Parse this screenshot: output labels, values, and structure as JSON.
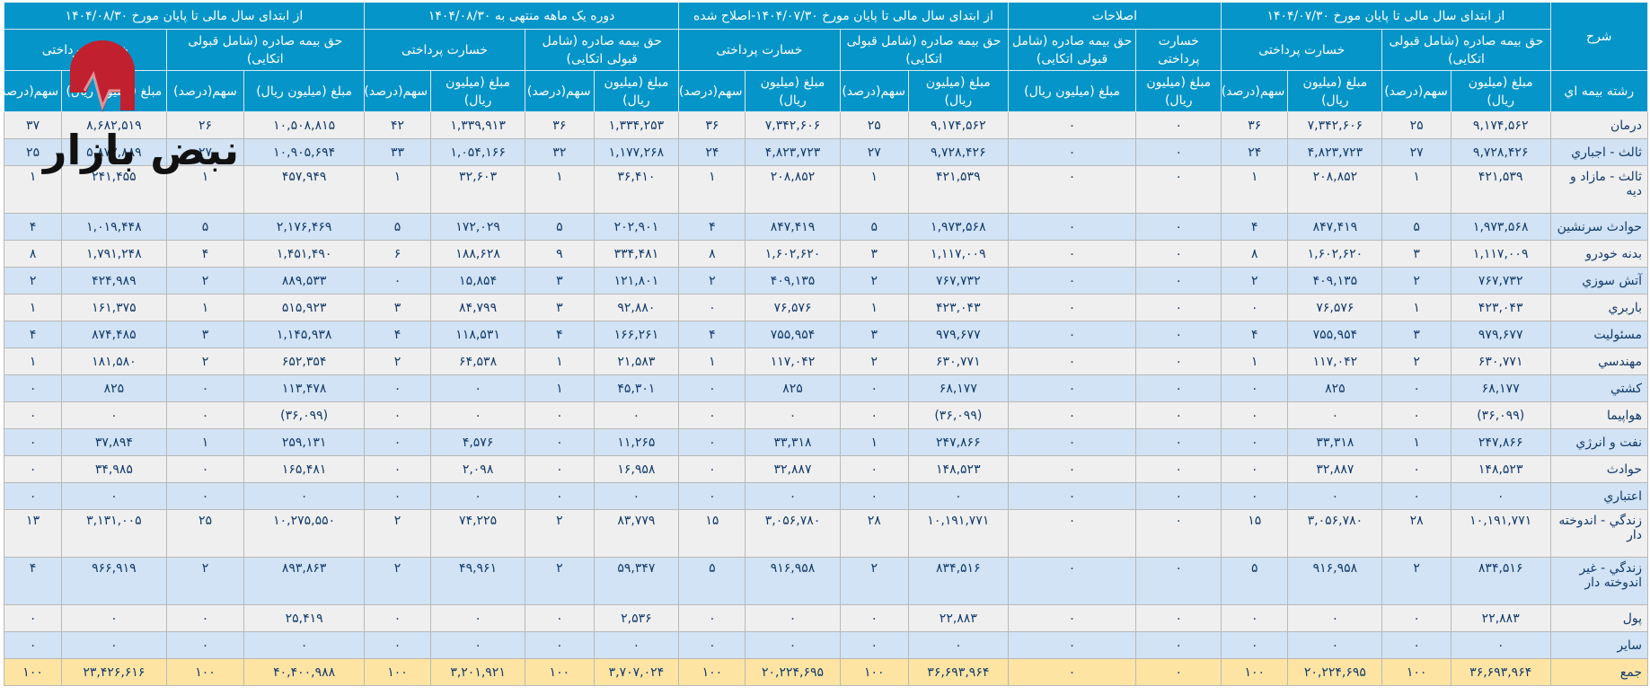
{
  "header": {
    "description_label": "شرح",
    "line_label": "رشته بیمه اي",
    "groups": [
      {
        "title": "از ابتدای سال مالی تا پایان مورخ ۱۴۰۴/۰۷/۳۰"
      },
      {
        "title": "اصلاحات"
      },
      {
        "title": "از ابتدای سال مالی تا پایان مورخ ۱۴۰۴/۰۷/۳۰-اصلاح شده"
      },
      {
        "title": "دوره یک ماهه منتهی به ۱۴۰۴/۰۸/۳۰"
      },
      {
        "title": "از ابتدای سال مالی تا پایان مورخ ۱۴۰۴/۰۸/۳۰"
      }
    ],
    "premium_label": "حق بیمه صادره (شامل قبولی اتکایی)",
    "claims_label": "خسارت پرداختی",
    "amount_label": "مبلغ (میلیون ریال)",
    "share_label": "سهم(درصد)"
  },
  "rows": [
    {
      "name": "درمان",
      "v": [
        "۹,۱۷۴,۵۶۲",
        "۲۵",
        "۷,۳۴۲,۶۰۶",
        "۳۶",
        "۰",
        "۰",
        "۹,۱۷۴,۵۶۲",
        "۲۵",
        "۷,۳۴۲,۶۰۶",
        "۳۶",
        "۱,۳۳۴,۲۵۳",
        "۳۶",
        "۱,۳۳۹,۹۱۳",
        "۴۲",
        "۱۰,۵۰۸,۸۱۵",
        "۲۶",
        "۸,۶۸۲,۵۱۹",
        "۳۷"
      ]
    },
    {
      "name": "ثالث - اجباري",
      "v": [
        "۹,۷۲۸,۴۲۶",
        "۲۷",
        "۴,۸۲۳,۷۲۳",
        "۲۴",
        "۰",
        "۰",
        "۹,۷۲۸,۴۲۶",
        "۲۷",
        "۴,۸۲۳,۷۲۳",
        "۲۴",
        "۱,۱۷۷,۲۶۸",
        "۳۲",
        "۱,۰۵۴,۱۶۶",
        "۳۳",
        "۱۰,۹۰۵,۶۹۴",
        "۲۷",
        "۵,۸۷۷,۸۸۹",
        "۲۵"
      ]
    },
    {
      "name": "ثالث - مازاد و دیه",
      "v": [
        "۴۲۱,۵۳۹",
        "۱",
        "۲۰۸,۸۵۲",
        "۱",
        "۰",
        "۰",
        "۴۲۱,۵۳۹",
        "۱",
        "۲۰۸,۸۵۲",
        "۱",
        "۳۶,۴۱۰",
        "۱",
        "۳۲,۶۰۳",
        "۱",
        "۴۵۷,۹۴۹",
        "۱",
        "۲۴۱,۴۵۵",
        "۱"
      ]
    },
    {
      "name": "حوادث سرنشین",
      "v": [
        "۱,۹۷۳,۵۶۸",
        "۵",
        "۸۴۷,۴۱۹",
        "۴",
        "۰",
        "۰",
        "۱,۹۷۳,۵۶۸",
        "۵",
        "۸۴۷,۴۱۹",
        "۴",
        "۲۰۲,۹۰۱",
        "۵",
        "۱۷۲,۰۲۹",
        "۵",
        "۲,۱۷۶,۴۶۹",
        "۵",
        "۱,۰۱۹,۴۴۸",
        "۴"
      ]
    },
    {
      "name": "بدنه خودرو",
      "v": [
        "۱,۱۱۷,۰۰۹",
        "۳",
        "۱,۶۰۲,۶۲۰",
        "۸",
        "۰",
        "۰",
        "۱,۱۱۷,۰۰۹",
        "۳",
        "۱,۶۰۲,۶۲۰",
        "۸",
        "۳۳۴,۴۸۱",
        "۹",
        "۱۸۸,۶۲۸",
        "۶",
        "۱,۴۵۱,۴۹۰",
        "۴",
        "۱,۷۹۱,۲۴۸",
        "۸"
      ]
    },
    {
      "name": "آتش سوزي",
      "v": [
        "۷۶۷,۷۳۲",
        "۲",
        "۴۰۹,۱۳۵",
        "۲",
        "۰",
        "۰",
        "۷۶۷,۷۳۲",
        "۲",
        "۴۰۹,۱۳۵",
        "۲",
        "۱۲۱,۸۰۱",
        "۳",
        "۱۵,۸۵۴",
        "۰",
        "۸۸۹,۵۳۳",
        "۲",
        "۴۲۴,۹۸۹",
        "۲"
      ]
    },
    {
      "name": "باربري",
      "v": [
        "۴۲۳,۰۴۳",
        "۱",
        "۷۶,۵۷۶",
        "۰",
        "۰",
        "۰",
        "۴۲۳,۰۴۳",
        "۱",
        "۷۶,۵۷۶",
        "۰",
        "۹۲,۸۸۰",
        "۳",
        "۸۴,۷۹۹",
        "۳",
        "۵۱۵,۹۲۳",
        "۱",
        "۱۶۱,۳۷۵",
        "۱"
      ]
    },
    {
      "name": "مسئولیت",
      "v": [
        "۹۷۹,۶۷۷",
        "۳",
        "۷۵۵,۹۵۴",
        "۴",
        "۰",
        "۰",
        "۹۷۹,۶۷۷",
        "۳",
        "۷۵۵,۹۵۴",
        "۴",
        "۱۶۶,۲۶۱",
        "۴",
        "۱۱۸,۵۳۱",
        "۴",
        "۱,۱۴۵,۹۳۸",
        "۳",
        "۸۷۴,۴۸۵",
        "۴"
      ]
    },
    {
      "name": "مهندسي",
      "v": [
        "۶۳۰,۷۷۱",
        "۲",
        "۱۱۷,۰۴۲",
        "۱",
        "۰",
        "۰",
        "۶۳۰,۷۷۱",
        "۲",
        "۱۱۷,۰۴۲",
        "۱",
        "۲۱,۵۸۳",
        "۱",
        "۶۴,۵۳۸",
        "۲",
        "۶۵۲,۳۵۴",
        "۲",
        "۱۸۱,۵۸۰",
        "۱"
      ]
    },
    {
      "name": "کشتي",
      "v": [
        "۶۸,۱۷۷",
        "۰",
        "۸۲۵",
        "۰",
        "۰",
        "۰",
        "۶۸,۱۷۷",
        "۰",
        "۸۲۵",
        "۰",
        "۴۵,۳۰۱",
        "۱",
        "۰",
        "۰",
        "۱۱۳,۴۷۸",
        "۰",
        "۸۲۵",
        "۰"
      ]
    },
    {
      "name": "هواپیما",
      "v": [
        "(۳۶,۰۹۹)",
        "۰",
        "۰",
        "۰",
        "۰",
        "۰",
        "(۳۶,۰۹۹)",
        "۰",
        "۰",
        "۰",
        "۰",
        "۰",
        "۰",
        "۰",
        "(۳۶,۰۹۹)",
        "۰",
        "۰",
        "۰"
      ]
    },
    {
      "name": "نفت و انرژي",
      "v": [
        "۲۴۷,۸۶۶",
        "۱",
        "۳۳,۳۱۸",
        "۰",
        "۰",
        "۰",
        "۲۴۷,۸۶۶",
        "۱",
        "۳۳,۳۱۸",
        "۰",
        "۱۱,۲۶۵",
        "۰",
        "۴,۵۷۶",
        "۰",
        "۲۵۹,۱۳۱",
        "۱",
        "۳۷,۸۹۴",
        "۰"
      ]
    },
    {
      "name": "حوادث",
      "v": [
        "۱۴۸,۵۲۳",
        "۰",
        "۳۲,۸۸۷",
        "۰",
        "۰",
        "۰",
        "۱۴۸,۵۲۳",
        "۰",
        "۳۲,۸۸۷",
        "۰",
        "۱۶,۹۵۸",
        "۰",
        "۲,۰۹۸",
        "۰",
        "۱۶۵,۴۸۱",
        "۰",
        "۳۴,۹۸۵",
        "۰"
      ]
    },
    {
      "name": "اعتباري",
      "v": [
        "۰",
        "۰",
        "۰",
        "۰",
        "۰",
        "۰",
        "۰",
        "۰",
        "۰",
        "۰",
        "۰",
        "۰",
        "۰",
        "۰",
        "۰",
        "۰",
        "۰",
        "۰"
      ]
    },
    {
      "name": "زندگي - اندوخته دار",
      "v": [
        "۱۰,۱۹۱,۷۷۱",
        "۲۸",
        "۳,۰۵۶,۷۸۰",
        "۱۵",
        "۰",
        "۰",
        "۱۰,۱۹۱,۷۷۱",
        "۲۸",
        "۳,۰۵۶,۷۸۰",
        "۱۵",
        "۸۳,۷۷۹",
        "۲",
        "۷۴,۲۲۵",
        "۲",
        "۱۰,۲۷۵,۵۵۰",
        "۲۵",
        "۳,۱۳۱,۰۰۵",
        "۱۳"
      ]
    },
    {
      "name": "زندگي - غیر اندوخته دار",
      "v": [
        "۸۳۴,۵۱۶",
        "۲",
        "۹۱۶,۹۵۸",
        "۵",
        "۰",
        "۰",
        "۸۳۴,۵۱۶",
        "۲",
        "۹۱۶,۹۵۸",
        "۵",
        "۵۹,۳۴۷",
        "۲",
        "۴۹,۹۶۱",
        "۲",
        "۸۹۳,۸۶۳",
        "۲",
        "۹۶۶,۹۱۹",
        "۴"
      ]
    },
    {
      "name": "پول",
      "v": [
        "۲۲,۸۸۳",
        "۰",
        "۰",
        "۰",
        "۰",
        "۰",
        "۲۲,۸۸۳",
        "۰",
        "۰",
        "۰",
        "۲,۵۳۶",
        "۰",
        "۰",
        "۰",
        "۲۵,۴۱۹",
        "۰",
        "۰",
        "۰"
      ]
    },
    {
      "name": "سایر",
      "v": [
        "۰",
        "۰",
        "۰",
        "۰",
        "۰",
        "۰",
        "۰",
        "۰",
        "۰",
        "۰",
        "۰",
        "۰",
        "۰",
        "۰",
        "۰",
        "۰",
        "۰",
        "۰"
      ]
    },
    {
      "name": "جمع",
      "v": [
        "۳۶,۶۹۳,۹۶۴",
        "۱۰۰",
        "۲۰,۲۲۴,۶۹۵",
        "۱۰۰",
        "۰",
        "۰",
        "۳۶,۶۹۳,۹۶۴",
        "۱۰۰",
        "۲۰,۲۲۴,۶۹۵",
        "۱۰۰",
        "۳,۷۰۷,۰۲۴",
        "۱۰۰",
        "۳,۲۰۱,۹۲۱",
        "۱۰۰",
        "۴۰,۴۰۰,۹۸۸",
        "۱۰۰",
        "۲۳,۴۲۶,۶۱۶",
        "۱۰۰"
      ]
    }
  ],
  "watermark": {
    "text": "نبض بازار"
  },
  "colors": {
    "header_bg": "#0595c9",
    "row_even": "#efefef",
    "row_odd": "#d1e3f4",
    "total_bg": "#fde4a3",
    "negative": "#ee1c1c",
    "text": "#123a6b"
  }
}
